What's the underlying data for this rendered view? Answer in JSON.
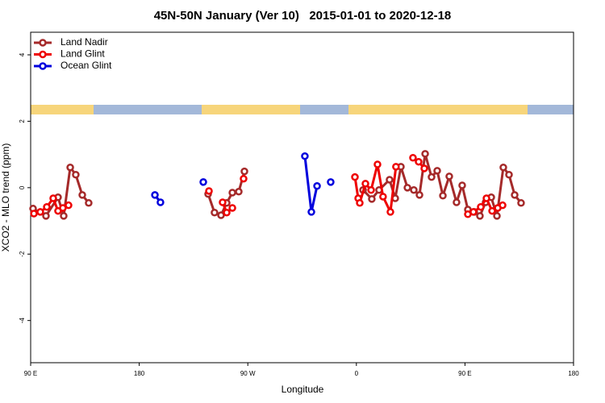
{
  "chart_data": {
    "type": "line",
    "title": "45N-50N January (Ver 10)   2015-01-01 to 2020-12-18",
    "xlabel": "Longitude",
    "ylabel": "XCO2 - MLO trend (ppm)",
    "xlim": [
      90,
      540
    ],
    "ylim": [
      -5.27,
      4.68
    ],
    "xticks": [
      {
        "value": 90,
        "label": "90 E"
      },
      180,
      {
        "value": 270,
        "label": "90 W"
      },
      {
        "value": 360,
        "label": "0"
      },
      {
        "value": 450,
        "label": "90 E"
      },
      {
        "value": 540,
        "label": "180"
      }
    ],
    "yticks": [
      -4,
      -2,
      0,
      2,
      4
    ],
    "legend": "top-left",
    "series": [
      {
        "name": "Land Nadir",
        "color": "#a52a2a",
        "x": [
          92.0,
          102.7,
          112.7,
          117.4,
          122.8,
          127.4,
          132.8,
          138.1,
          null,
          237.1,
          242.4,
          247.8,
          252.5,
          257.2,
          262.5,
          267.2,
          null,
          365.5,
          372.8,
          378.8,
          387.5,
          392.2,
          396.9,
          402.3,
          407.6,
          412.3,
          417.0,
          422.3,
          427.0,
          431.7,
          437.0,
          443.0,
          447.7,
          452.4,
          457.7,
          462.4,
          467.1,
          471.8,
          476.5,
          481.8,
          486.5,
          491.2,
          496.5
        ],
        "values": [
          -0.63,
          -0.85,
          -0.29,
          -0.85,
          0.61,
          0.39,
          -0.22,
          -0.46,
          null,
          -0.19,
          -0.75,
          -0.83,
          -0.46,
          -0.15,
          -0.12,
          0.49,
          null,
          -0.07,
          -0.34,
          -0.07,
          0.24,
          -0.32,
          0.63,
          0.0,
          -0.07,
          -0.22,
          1.02,
          0.32,
          0.51,
          -0.24,
          0.34,
          -0.44,
          0.07,
          -0.66,
          -0.73,
          -0.85,
          -0.44,
          -0.29,
          -0.85,
          0.61,
          0.39,
          -0.22,
          -0.46
        ]
      },
      {
        "name": "Land Glint",
        "color": "#ee0000",
        "x": [
          92.7,
          98.0,
          103.4,
          108.7,
          112.7,
          116.7,
          121.4,
          null,
          237.8,
          null,
          249.1,
          252.5,
          257.2,
          null,
          266.5,
          null,
          358.8,
          361.5,
          362.8,
          367.5,
          372.2,
          377.5,
          382.1,
          388.2,
          392.8,
          null,
          406.9,
          411.6,
          416.3,
          null,
          452.4,
          457.0,
          463.1,
          467.8,
          472.5,
          477.2,
          481.2
        ],
        "values": [
          -0.78,
          -0.73,
          -0.58,
          -0.32,
          -0.7,
          -0.61,
          -0.53,
          null,
          -0.1,
          null,
          -0.44,
          -0.75,
          -0.61,
          null,
          0.27,
          null,
          0.32,
          -0.32,
          -0.46,
          0.12,
          -0.07,
          0.7,
          -0.27,
          -0.73,
          0.63,
          null,
          0.9,
          0.78,
          0.58,
          null,
          -0.8,
          -0.73,
          -0.58,
          -0.32,
          -0.7,
          -0.61,
          -0.53
        ]
      },
      {
        "name": "Ocean Glint",
        "color": "#0000dd",
        "x": [
          193.0,
          197.6,
          null,
          233.1,
          null,
          317.3,
          322.7,
          327.4,
          null,
          338.7
        ],
        "values": [
          -0.22,
          -0.44,
          null,
          0.17,
          null,
          0.95,
          -0.73,
          0.05,
          null,
          0.17
        ]
      }
    ]
  }
}
